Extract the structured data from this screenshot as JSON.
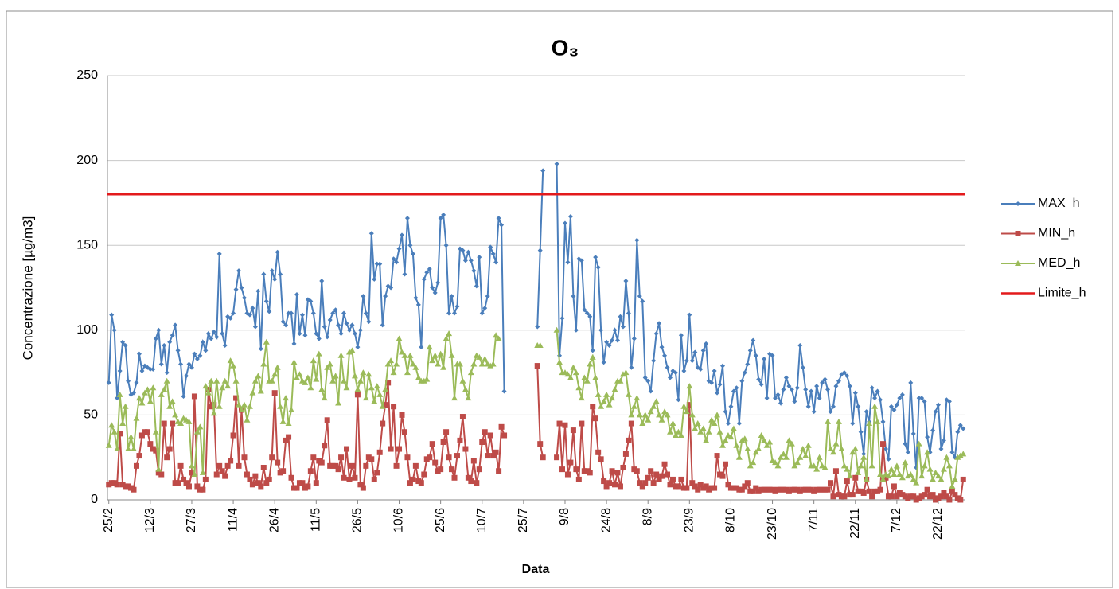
{
  "chart_data": {
    "type": "line",
    "title": "O₃",
    "x_label": "Data",
    "y_label": "Concentrazione [µg/m3]",
    "categories": [
      "25/2",
      null,
      null,
      null,
      null,
      null,
      null,
      null,
      null,
      null,
      null,
      null,
      null,
      null,
      null,
      "12/3",
      null,
      null,
      null,
      null,
      null,
      null,
      null,
      null,
      null,
      null,
      null,
      null,
      null,
      null,
      "27/3",
      null,
      null,
      null,
      null,
      null,
      null,
      null,
      null,
      null,
      null,
      null,
      null,
      null,
      null,
      "11/4",
      null,
      null,
      null,
      null,
      null,
      null,
      null,
      null,
      null,
      null,
      null,
      null,
      null,
      null,
      "26/4",
      null,
      null,
      null,
      null,
      null,
      null,
      null,
      null,
      null,
      null,
      null,
      null,
      null,
      null,
      "11/5",
      null,
      null,
      null,
      null,
      null,
      null,
      null,
      null,
      null,
      null,
      null,
      null,
      null,
      null,
      "26/5",
      null,
      null,
      null,
      null,
      null,
      null,
      null,
      null,
      null,
      null,
      null,
      null,
      null,
      null,
      "10/6",
      null,
      null,
      null,
      null,
      null,
      null,
      null,
      null,
      null,
      null,
      null,
      null,
      null,
      null,
      "25/6",
      null,
      null,
      null,
      null,
      null,
      null,
      null,
      null,
      null,
      null,
      null,
      null,
      null,
      null,
      "10/7",
      null,
      null,
      null,
      null,
      null,
      null,
      null,
      null,
      null,
      null,
      null,
      null,
      null,
      null,
      "25/7",
      null,
      null,
      null,
      null,
      null,
      null,
      null,
      null,
      null,
      null,
      null,
      null,
      null,
      null,
      "9/8",
      null,
      null,
      null,
      null,
      null,
      null,
      null,
      null,
      null,
      null,
      null,
      null,
      null,
      null,
      "24/8",
      null,
      null,
      null,
      null,
      null,
      null,
      null,
      null,
      null,
      null,
      null,
      null,
      null,
      null,
      "8/9",
      null,
      null,
      null,
      null,
      null,
      null,
      null,
      null,
      null,
      null,
      null,
      null,
      null,
      null,
      "23/9",
      null,
      null,
      null,
      null,
      null,
      null,
      null,
      null,
      null,
      null,
      null,
      null,
      null,
      null,
      "8/10",
      null,
      null,
      null,
      null,
      null,
      null,
      null,
      null,
      null,
      null,
      null,
      null,
      null,
      null,
      "23/10",
      null,
      null,
      null,
      null,
      null,
      null,
      null,
      null,
      null,
      null,
      null,
      null,
      null,
      null,
      "7/11",
      null,
      null,
      null,
      null,
      null,
      null,
      null,
      null,
      null,
      null,
      null,
      null,
      null,
      null,
      "22/11",
      null,
      null,
      null,
      null,
      null,
      null,
      null,
      null,
      null,
      null,
      null,
      null,
      null,
      null,
      "7/12",
      null,
      null,
      null,
      null,
      null,
      null,
      null,
      null,
      null,
      null,
      null,
      null,
      null,
      null,
      "22/12",
      null,
      null,
      null,
      null,
      null,
      null,
      null,
      null,
      null
    ],
    "series": [
      {
        "name": "MAX_h",
        "color": "#4a7ebb",
        "marker": "diamond",
        "values": [
          69,
          109,
          100,
          60,
          76,
          93,
          91,
          70,
          62,
          63,
          69,
          86,
          76,
          79,
          78,
          77,
          77,
          95,
          100,
          80,
          91,
          75,
          93,
          97,
          103,
          88,
          80,
          61,
          73,
          80,
          78,
          86,
          83,
          85,
          93,
          88,
          98,
          95,
          99,
          96,
          145,
          98,
          91,
          108,
          107,
          110,
          124,
          135,
          125,
          119,
          110,
          109,
          113,
          102,
          123,
          89,
          133,
          117,
          111,
          135,
          130,
          146,
          133,
          105,
          103,
          110,
          110,
          92,
          121,
          98,
          109,
          97,
          118,
          117,
          110,
          98,
          95,
          129,
          102,
          96,
          106,
          110,
          112,
          103,
          98,
          110,
          104,
          100,
          103,
          98,
          90,
          100,
          120,
          110,
          105,
          157,
          130,
          139,
          139,
          103,
          120,
          126,
          125,
          142,
          140,
          148,
          156,
          133,
          166,
          150,
          145,
          119,
          115,
          90,
          130,
          134,
          136,
          125,
          122,
          128,
          166,
          168,
          150,
          110,
          120,
          110,
          114,
          148,
          147,
          141,
          146,
          141,
          135,
          126,
          143,
          110,
          113,
          120,
          149,
          145,
          140,
          166,
          162,
          64,
          null,
          null,
          null,
          null,
          null,
          null,
          null,
          null,
          null,
          null,
          null,
          102,
          147,
          194,
          null,
          null,
          null,
          null,
          198,
          85,
          107,
          163,
          140,
          167,
          120,
          100,
          142,
          141,
          112,
          110,
          108,
          88,
          143,
          137,
          100,
          81,
          93,
          91,
          94,
          100,
          94,
          108,
          102,
          129,
          110,
          78,
          95,
          153,
          120,
          117,
          72,
          70,
          64,
          82,
          98,
          104,
          90,
          85,
          78,
          72,
          76,
          75,
          59,
          97,
          76,
          82,
          109,
          82,
          87,
          78,
          77,
          88,
          92,
          70,
          69,
          76,
          63,
          68,
          79,
          52,
          45,
          55,
          64,
          66,
          45,
          70,
          75,
          80,
          88,
          94,
          85,
          71,
          68,
          83,
          60,
          86,
          85,
          60,
          62,
          57,
          65,
          72,
          67,
          65,
          58,
          66,
          91,
          78,
          65,
          55,
          64,
          52,
          67,
          60,
          69,
          71,
          65,
          52,
          55,
          67,
          70,
          74,
          75,
          73,
          67,
          45,
          63,
          55,
          40,
          27,
          52,
          46,
          66,
          60,
          64,
          59,
          46,
          30,
          24,
          55,
          53,
          56,
          60,
          62,
          33,
          28,
          69,
          39,
          19,
          60,
          60,
          58,
          37,
          28,
          41,
          52,
          56,
          30,
          35,
          59,
          58,
          28,
          25,
          40,
          44,
          42
        ]
      },
      {
        "name": "MIN_h",
        "color": "#be4b48",
        "marker": "square",
        "values": [
          9,
          10,
          10,
          9,
          39,
          9,
          8,
          8,
          7,
          6,
          20,
          26,
          38,
          40,
          40,
          33,
          30,
          29,
          16,
          15,
          45,
          25,
          30,
          45,
          10,
          10,
          20,
          12,
          10,
          8,
          16,
          61,
          8,
          6,
          6,
          12,
          65,
          55,
          56,
          15,
          20,
          17,
          14,
          20,
          23,
          38,
          60,
          20,
          53,
          25,
          15,
          12,
          9,
          14,
          10,
          8,
          19,
          10,
          12,
          25,
          63,
          22,
          16,
          17,
          35,
          37,
          13,
          7,
          7,
          10,
          10,
          7,
          8,
          17,
          25,
          10,
          23,
          22,
          32,
          47,
          20,
          20,
          20,
          18,
          25,
          13,
          30,
          12,
          20,
          13,
          62,
          9,
          7,
          20,
          25,
          24,
          12,
          16,
          28,
          45,
          56,
          69,
          30,
          55,
          20,
          30,
          50,
          40,
          25,
          10,
          12,
          20,
          11,
          10,
          15,
          24,
          25,
          33,
          22,
          17,
          18,
          34,
          40,
          25,
          18,
          13,
          26,
          35,
          49,
          30,
          13,
          11,
          23,
          10,
          18,
          34,
          40,
          26,
          38,
          26,
          28,
          17,
          43,
          38,
          null,
          null,
          null,
          null,
          null,
          null,
          null,
          null,
          null,
          null,
          null,
          79,
          33,
          25,
          null,
          null,
          null,
          null,
          25,
          45,
          18,
          44,
          15,
          22,
          41,
          18,
          12,
          45,
          17,
          17,
          16,
          55,
          48,
          28,
          24,
          11,
          8,
          10,
          17,
          9,
          16,
          8,
          19,
          27,
          35,
          45,
          18,
          17,
          10,
          8,
          10,
          13,
          17,
          10,
          15,
          12,
          14,
          21,
          15,
          9,
          12,
          8,
          8,
          12,
          7,
          7,
          56,
          10,
          8,
          6,
          9,
          7,
          8,
          6,
          7,
          7,
          26,
          15,
          14,
          21,
          9,
          7,
          7,
          7,
          6,
          6,
          8,
          10,
          5,
          5,
          7,
          5,
          6,
          6,
          6,
          6,
          6,
          5,
          6,
          6,
          6,
          6,
          5,
          6,
          6,
          6,
          5,
          6,
          6,
          6,
          6,
          5,
          6,
          6,
          6,
          6,
          6,
          10,
          2,
          17,
          3,
          2,
          2,
          11,
          3,
          3,
          13,
          5,
          5,
          4,
          12,
          5,
          2,
          5,
          5,
          6,
          33,
          13,
          2,
          2,
          8,
          2,
          4,
          3,
          2,
          1,
          2,
          2,
          0,
          1,
          2,
          3,
          6,
          2,
          3,
          0,
          1,
          2,
          4,
          2,
          0,
          5,
          3,
          1,
          0,
          12
        ]
      },
      {
        "name": "MED_h",
        "color": "#9bbb59",
        "marker": "triangle",
        "values": [
          32,
          44,
          40,
          30,
          62,
          45,
          55,
          30,
          37,
          30,
          48,
          60,
          57,
          63,
          65,
          58,
          66,
          40,
          18,
          62,
          65,
          70,
          55,
          58,
          50,
          46,
          45,
          48,
          47,
          46,
          20,
          15,
          40,
          43,
          16,
          67,
          63,
          70,
          51,
          70,
          55,
          66,
          70,
          67,
          82,
          79,
          70,
          56,
          53,
          56,
          47,
          55,
          63,
          70,
          73,
          64,
          80,
          93,
          70,
          70,
          74,
          78,
          55,
          46,
          60,
          45,
          53,
          81,
          72,
          74,
          70,
          69,
          72,
          66,
          82,
          71,
          86,
          65,
          60,
          78,
          80,
          70,
          73,
          57,
          85,
          70,
          66,
          87,
          88,
          73,
          65,
          70,
          75,
          60,
          74,
          66,
          58,
          67,
          62,
          55,
          65,
          80,
          82,
          75,
          80,
          95,
          87,
          85,
          75,
          85,
          80,
          78,
          72,
          70,
          70,
          71,
          90,
          82,
          85,
          80,
          86,
          78,
          95,
          98,
          85,
          60,
          80,
          80,
          70,
          65,
          60,
          75,
          80,
          85,
          84,
          80,
          83,
          80,
          79,
          80,
          97,
          95,
          null,
          null,
          null,
          null,
          null,
          null,
          null,
          null,
          null,
          null,
          null,
          null,
          null,
          91,
          91,
          null,
          null,
          null,
          null,
          null,
          100,
          81,
          75,
          75,
          74,
          72,
          78,
          75,
          66,
          60,
          72,
          70,
          80,
          84,
          72,
          62,
          55,
          58,
          62,
          56,
          60,
          65,
          70,
          70,
          74,
          75,
          62,
          50,
          55,
          60,
          50,
          45,
          50,
          47,
          52,
          55,
          58,
          50,
          47,
          52,
          50,
          40,
          45,
          38,
          40,
          38,
          55,
          52,
          67,
          50,
          42,
          45,
          40,
          42,
          35,
          40,
          47,
          45,
          50,
          40,
          32,
          35,
          38,
          37,
          42,
          32,
          25,
          35,
          36,
          30,
          20,
          22,
          28,
          30,
          38,
          35,
          32,
          34,
          23,
          22,
          20,
          25,
          27,
          25,
          35,
          33,
          20,
          22,
          25,
          30,
          26,
          32,
          20,
          20,
          18,
          25,
          20,
          19,
          46,
          30,
          28,
          33,
          46,
          30,
          20,
          18,
          14,
          28,
          30,
          16,
          20,
          25,
          12,
          45,
          20,
          55,
          46,
          15,
          12,
          15,
          14,
          18,
          15,
          20,
          15,
          13,
          22,
          14,
          15,
          12,
          10,
          33,
          14,
          20,
          28,
          18,
          12,
          16,
          14,
          12,
          18,
          25,
          20,
          8,
          12,
          25,
          26,
          27
        ]
      }
    ],
    "reference_lines": [
      {
        "name": "Limite_h",
        "color": "#e31a1c",
        "value": 180
      }
    ],
    "ylim": [
      0,
      250
    ],
    "yticks": [
      0,
      50,
      100,
      150,
      200,
      250
    ],
    "grid": true,
    "legend": "right"
  }
}
